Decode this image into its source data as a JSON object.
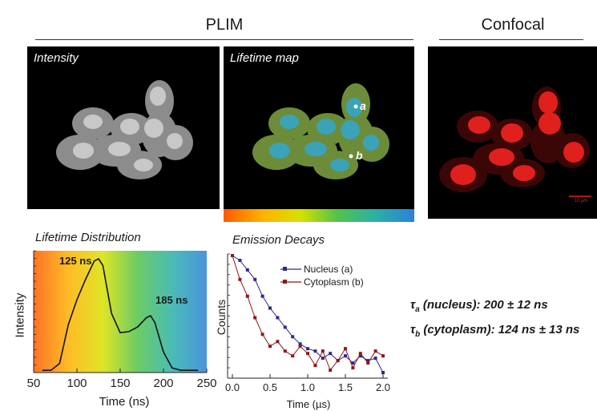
{
  "header": {
    "plim_title": "PLIM",
    "confocal_title": "Confocal"
  },
  "panels": {
    "intensity_label": "Intensity",
    "lifetime_map_label": "Lifetime map",
    "point_a": "a",
    "point_b": "b",
    "scale_bar_text": "10 µm",
    "colors": {
      "intensity_cells": "#9a9a9a",
      "lifetime_cytoplasm": "#6d8c3a",
      "lifetime_nucleus": "#3aa3b8",
      "confocal_red": "#e0201c"
    }
  },
  "colorbar": {
    "stops": [
      "#ff5a00",
      "#ffb000",
      "#d8e000",
      "#52c24a",
      "#2ab0a8",
      "#2a80d8"
    ]
  },
  "lifetime_distribution": {
    "title": "Lifetime Distribution",
    "peak1_label": "125 ns",
    "peak2_label": "185 ns",
    "ylabel": "Intensity",
    "xlabel": "Time (ns)",
    "x_ticks": [
      "50",
      "100",
      "150",
      "200",
      "250"
    ]
  },
  "emission_decays": {
    "title": "Emission Decays",
    "ylabel": "Counts",
    "xlabel": "Time (µs)",
    "x_ticks": [
      "0.0",
      "0.5",
      "1.0",
      "1.5",
      "2.0"
    ],
    "legend_nucleus": "Nucleus (a)",
    "legend_cytoplasm": "Cytoplasm (b)"
  },
  "lifetimes": {
    "a_symbol": "τ",
    "a_sub": "a",
    "a_text": " (nucleus): 200 ± 12 ns",
    "b_symbol": "τ",
    "b_sub": "b",
    "b_text": " (cytoplasm): 124 ns ± 13 ns"
  },
  "chart_data": [
    {
      "type": "line",
      "title": "Lifetime Distribution",
      "xlabel": "Time (ns)",
      "ylabel": "Intensity",
      "xlim": [
        50,
        250
      ],
      "x": [
        60,
        70,
        80,
        90,
        100,
        110,
        120,
        125,
        130,
        140,
        150,
        160,
        170,
        180,
        185,
        190,
        200,
        210,
        220,
        240
      ],
      "y": [
        0.02,
        0.02,
        0.08,
        0.42,
        0.64,
        0.82,
        0.98,
        1.0,
        0.94,
        0.52,
        0.35,
        0.36,
        0.4,
        0.48,
        0.5,
        0.44,
        0.18,
        0.04,
        0.02,
        0.02
      ],
      "annotations": [
        "125 ns",
        "185 ns"
      ]
    },
    {
      "type": "line",
      "title": "Emission Decays",
      "xlabel": "Time (µs)",
      "ylabel": "Counts",
      "xlim": [
        0,
        2.0
      ],
      "series": [
        {
          "name": "Nucleus (a)",
          "color": "#2a2a8a",
          "x": [
            0.0,
            0.1,
            0.2,
            0.3,
            0.4,
            0.5,
            0.6,
            0.7,
            0.8,
            0.9,
            1.0,
            1.1,
            1.2,
            1.3,
            1.4,
            1.5,
            1.6,
            1.7,
            1.8,
            1.9,
            2.0
          ],
          "y": [
            1.0,
            0.96,
            0.88,
            0.8,
            0.66,
            0.56,
            0.48,
            0.4,
            0.32,
            0.26,
            0.22,
            0.2,
            0.14,
            0.18,
            0.12,
            0.16,
            0.1,
            0.16,
            0.12,
            0.14,
            0.02
          ]
        },
        {
          "name": "Cytoplasm (b)",
          "color": "#8a1a1a",
          "x": [
            0.0,
            0.1,
            0.2,
            0.3,
            0.4,
            0.5,
            0.6,
            0.7,
            0.8,
            0.9,
            1.0,
            1.1,
            1.2,
            1.3,
            1.4,
            1.5,
            1.6,
            1.7,
            1.8,
            1.9,
            2.0
          ],
          "y": [
            1.0,
            0.8,
            0.66,
            0.48,
            0.34,
            0.24,
            0.28,
            0.2,
            0.16,
            0.24,
            0.18,
            0.08,
            0.2,
            0.04,
            0.12,
            0.22,
            0.06,
            0.18,
            0.1,
            0.2,
            0.16
          ]
        }
      ]
    }
  ]
}
